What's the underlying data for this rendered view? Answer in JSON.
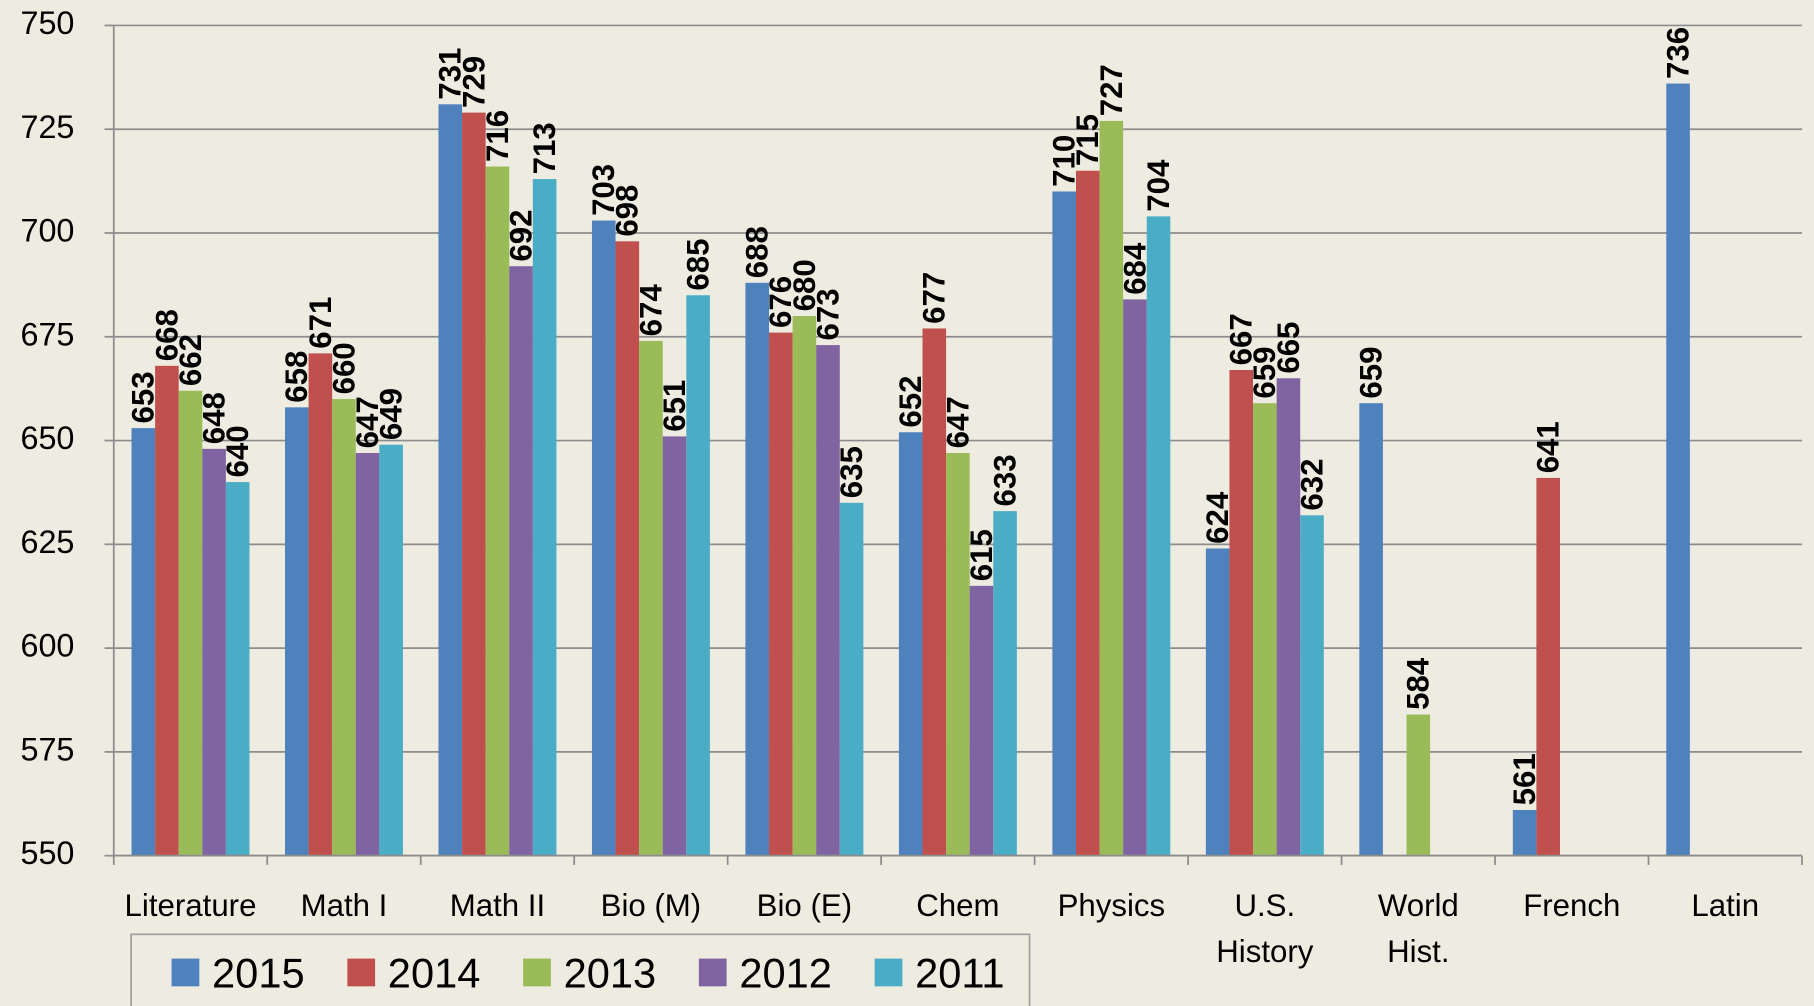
{
  "chart_data": {
    "type": "bar",
    "categories": [
      "Literature",
      "Math I",
      "Math II",
      "Bio (M)",
      "Bio (E)",
      "Chem",
      "Physics",
      "U.S.\nHistory",
      "World\nHist.",
      "French",
      "Latin"
    ],
    "series": [
      {
        "name": "2015",
        "color": "#4f81bd",
        "values": [
          653,
          658,
          731,
          703,
          688,
          652,
          710,
          624,
          659,
          561,
          736
        ]
      },
      {
        "name": "2014",
        "color": "#c0504d",
        "values": [
          668,
          671,
          729,
          698,
          676,
          677,
          715,
          667,
          null,
          641,
          null
        ]
      },
      {
        "name": "2013",
        "color": "#9bbb59",
        "values": [
          662,
          660,
          716,
          674,
          680,
          647,
          727,
          659,
          584,
          null,
          null
        ]
      },
      {
        "name": "2012",
        "color": "#8064a2",
        "values": [
          648,
          647,
          692,
          651,
          673,
          615,
          684,
          665,
          null,
          null,
          null
        ]
      },
      {
        "name": "2011",
        "color": "#4bacc6",
        "values": [
          640,
          649,
          713,
          685,
          635,
          633,
          704,
          632,
          null,
          null,
          null
        ]
      }
    ],
    "ylim": [
      550,
      750
    ],
    "yticks": [
      550,
      575,
      600,
      625,
      650,
      675,
      700,
      725,
      750
    ],
    "grid": true,
    "legend": "bottom"
  }
}
